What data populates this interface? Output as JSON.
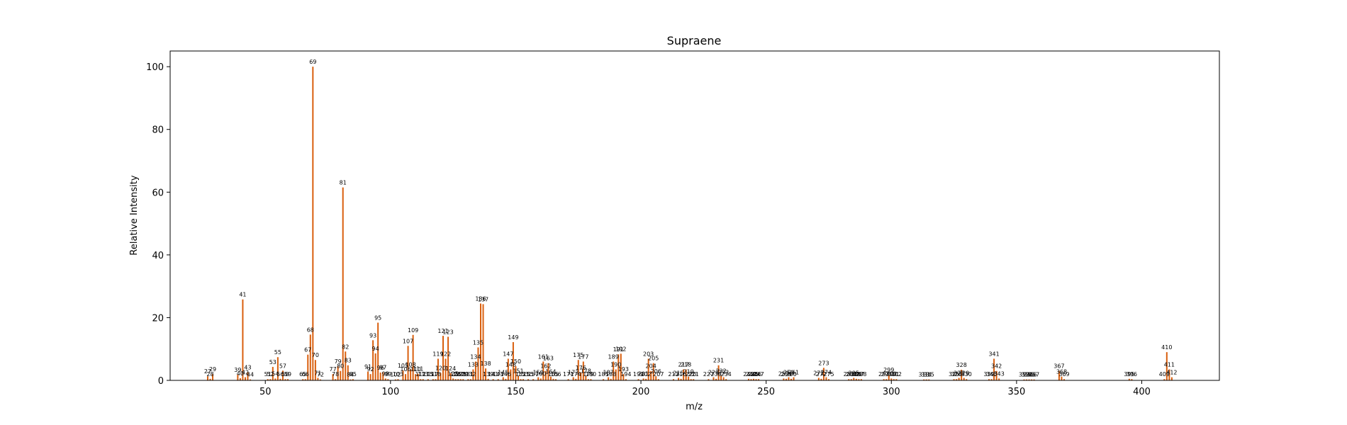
{
  "chart_data": {
    "type": "bar",
    "title": "Supraene",
    "xlabel": "m/z",
    "ylabel": "Relative Intensity",
    "xlim": [
      12,
      431
    ],
    "ylim": [
      0,
      105
    ],
    "xticks": [
      50,
      100,
      150,
      200,
      250,
      300,
      350,
      400
    ],
    "yticks": [
      0,
      20,
      40,
      60,
      80,
      100
    ],
    "bar_color": "#d95f0e",
    "grid": false,
    "peaks": [
      {
        "mz": 27,
        "intensity": 1.3
      },
      {
        "mz": 28,
        "intensity": 0.5
      },
      {
        "mz": 29,
        "intensity": 2.0
      },
      {
        "mz": 39,
        "intensity": 1.8
      },
      {
        "mz": 40,
        "intensity": 0.7
      },
      {
        "mz": 41,
        "intensity": 25.8
      },
      {
        "mz": 42,
        "intensity": 1.0
      },
      {
        "mz": 43,
        "intensity": 2.6
      },
      {
        "mz": 44,
        "intensity": 0.3
      },
      {
        "mz": 51,
        "intensity": 0.4
      },
      {
        "mz": 52,
        "intensity": 0.4
      },
      {
        "mz": 53,
        "intensity": 4.3
      },
      {
        "mz": 54,
        "intensity": 0.6
      },
      {
        "mz": 55,
        "intensity": 7.4
      },
      {
        "mz": 56,
        "intensity": 0.5
      },
      {
        "mz": 57,
        "intensity": 3.1
      },
      {
        "mz": 58,
        "intensity": 0.4
      },
      {
        "mz": 59,
        "intensity": 0.4
      },
      {
        "mz": 65,
        "intensity": 0.4
      },
      {
        "mz": 66,
        "intensity": 0.4
      },
      {
        "mz": 67,
        "intensity": 8.2
      },
      {
        "mz": 68,
        "intensity": 14.6
      },
      {
        "mz": 69,
        "intensity": 100.0
      },
      {
        "mz": 70,
        "intensity": 6.5
      },
      {
        "mz": 71,
        "intensity": 0.8
      },
      {
        "mz": 72,
        "intensity": 0.3
      },
      {
        "mz": 77,
        "intensity": 2.0
      },
      {
        "mz": 78,
        "intensity": 0.4
      },
      {
        "mz": 79,
        "intensity": 4.5
      },
      {
        "mz": 80,
        "intensity": 3.0
      },
      {
        "mz": 81,
        "intensity": 61.5
      },
      {
        "mz": 82,
        "intensity": 9.2
      },
      {
        "mz": 83,
        "intensity": 4.8
      },
      {
        "mz": 84,
        "intensity": 0.3
      },
      {
        "mz": 85,
        "intensity": 0.4
      },
      {
        "mz": 91,
        "intensity": 2.8
      },
      {
        "mz": 92,
        "intensity": 2.0
      },
      {
        "mz": 93,
        "intensity": 12.8
      },
      {
        "mz": 94,
        "intensity": 8.6
      },
      {
        "mz": 95,
        "intensity": 18.4
      },
      {
        "mz": 96,
        "intensity": 2.5
      },
      {
        "mz": 97,
        "intensity": 2.6
      },
      {
        "mz": 98,
        "intensity": 0.6
      },
      {
        "mz": 99,
        "intensity": 0.4
      },
      {
        "mz": 102,
        "intensity": 0.3
      },
      {
        "mz": 103,
        "intensity": 0.4
      },
      {
        "mz": 105,
        "intensity": 3.2
      },
      {
        "mz": 106,
        "intensity": 2.0
      },
      {
        "mz": 107,
        "intensity": 11.0
      },
      {
        "mz": 108,
        "intensity": 3.5
      },
      {
        "mz": 109,
        "intensity": 14.5
      },
      {
        "mz": 110,
        "intensity": 2.0
      },
      {
        "mz": 111,
        "intensity": 2.1
      },
      {
        "mz": 112,
        "intensity": 0.4
      },
      {
        "mz": 113,
        "intensity": 0.4
      },
      {
        "mz": 115,
        "intensity": 0.4
      },
      {
        "mz": 117,
        "intensity": 0.4
      },
      {
        "mz": 118,
        "intensity": 0.4
      },
      {
        "mz": 119,
        "intensity": 6.9
      },
      {
        "mz": 120,
        "intensity": 2.4
      },
      {
        "mz": 121,
        "intensity": 14.2
      },
      {
        "mz": 122,
        "intensity": 6.9
      },
      {
        "mz": 123,
        "intensity": 13.9
      },
      {
        "mz": 124,
        "intensity": 2.3
      },
      {
        "mz": 125,
        "intensity": 0.6
      },
      {
        "mz": 126,
        "intensity": 0.4
      },
      {
        "mz": 127,
        "intensity": 0.4
      },
      {
        "mz": 128,
        "intensity": 0.4
      },
      {
        "mz": 129,
        "intensity": 0.4
      },
      {
        "mz": 131,
        "intensity": 0.4
      },
      {
        "mz": 132,
        "intensity": 0.4
      },
      {
        "mz": 133,
        "intensity": 3.5
      },
      {
        "mz": 134,
        "intensity": 6.0
      },
      {
        "mz": 135,
        "intensity": 10.5
      },
      {
        "mz": 136,
        "intensity": 24.5
      },
      {
        "mz": 137,
        "intensity": 24.3
      },
      {
        "mz": 138,
        "intensity": 3.8
      },
      {
        "mz": 139,
        "intensity": 0.5
      },
      {
        "mz": 141,
        "intensity": 0.4
      },
      {
        "mz": 143,
        "intensity": 0.4
      },
      {
        "mz": 145,
        "intensity": 1.0
      },
      {
        "mz": 146,
        "intensity": 0.5
      },
      {
        "mz": 147,
        "intensity": 6.9
      },
      {
        "mz": 148,
        "intensity": 3.5
      },
      {
        "mz": 149,
        "intensity": 12.2
      },
      {
        "mz": 150,
        "intensity": 4.5
      },
      {
        "mz": 151,
        "intensity": 1.5
      },
      {
        "mz": 152,
        "intensity": 0.4
      },
      {
        "mz": 153,
        "intensity": 0.4
      },
      {
        "mz": 155,
        "intensity": 0.4
      },
      {
        "mz": 157,
        "intensity": 0.4
      },
      {
        "mz": 159,
        "intensity": 1.0
      },
      {
        "mz": 160,
        "intensity": 0.6
      },
      {
        "mz": 161,
        "intensity": 6.0
      },
      {
        "mz": 162,
        "intensity": 3.0
      },
      {
        "mz": 163,
        "intensity": 5.5
      },
      {
        "mz": 164,
        "intensity": 1.2
      },
      {
        "mz": 165,
        "intensity": 0.5
      },
      {
        "mz": 166,
        "intensity": 0.4
      },
      {
        "mz": 171,
        "intensity": 0.4
      },
      {
        "mz": 173,
        "intensity": 1.0
      },
      {
        "mz": 174,
        "intensity": 0.5
      },
      {
        "mz": 175,
        "intensity": 6.5
      },
      {
        "mz": 176,
        "intensity": 2.5
      },
      {
        "mz": 177,
        "intensity": 6.0
      },
      {
        "mz": 178,
        "intensity": 1.5
      },
      {
        "mz": 179,
        "intensity": 0.4
      },
      {
        "mz": 180,
        "intensity": 0.4
      },
      {
        "mz": 185,
        "intensity": 0.4
      },
      {
        "mz": 187,
        "intensity": 1.0
      },
      {
        "mz": 188,
        "intensity": 0.5
      },
      {
        "mz": 189,
        "intensity": 6.0
      },
      {
        "mz": 190,
        "intensity": 3.5
      },
      {
        "mz": 191,
        "intensity": 8.3
      },
      {
        "mz": 192,
        "intensity": 8.5
      },
      {
        "mz": 193,
        "intensity": 2.0
      },
      {
        "mz": 194,
        "intensity": 0.4
      },
      {
        "mz": 199,
        "intensity": 0.4
      },
      {
        "mz": 201,
        "intensity": 0.6
      },
      {
        "mz": 202,
        "intensity": 0.5
      },
      {
        "mz": 203,
        "intensity": 6.9
      },
      {
        "mz": 204,
        "intensity": 3.0
      },
      {
        "mz": 205,
        "intensity": 5.5
      },
      {
        "mz": 206,
        "intensity": 1.3
      },
      {
        "mz": 207,
        "intensity": 0.4
      },
      {
        "mz": 213,
        "intensity": 0.4
      },
      {
        "mz": 215,
        "intensity": 0.8
      },
      {
        "mz": 216,
        "intensity": 0.5
      },
      {
        "mz": 217,
        "intensity": 3.5
      },
      {
        "mz": 218,
        "intensity": 3.5
      },
      {
        "mz": 219,
        "intensity": 1.2
      },
      {
        "mz": 220,
        "intensity": 0.4
      },
      {
        "mz": 221,
        "intensity": 0.4
      },
      {
        "mz": 227,
        "intensity": 0.4
      },
      {
        "mz": 229,
        "intensity": 1.0
      },
      {
        "mz": 230,
        "intensity": 0.5
      },
      {
        "mz": 231,
        "intensity": 4.8
      },
      {
        "mz": 232,
        "intensity": 1.5
      },
      {
        "mz": 233,
        "intensity": 1.0
      },
      {
        "mz": 234,
        "intensity": 0.4
      },
      {
        "mz": 243,
        "intensity": 0.5
      },
      {
        "mz": 244,
        "intensity": 0.4
      },
      {
        "mz": 245,
        "intensity": 0.5
      },
      {
        "mz": 246,
        "intensity": 0.4
      },
      {
        "mz": 247,
        "intensity": 0.4
      },
      {
        "mz": 257,
        "intensity": 0.6
      },
      {
        "mz": 258,
        "intensity": 0.5
      },
      {
        "mz": 259,
        "intensity": 1.0
      },
      {
        "mz": 260,
        "intensity": 0.5
      },
      {
        "mz": 261,
        "intensity": 1.0
      },
      {
        "mz": 271,
        "intensity": 0.8
      },
      {
        "mz": 272,
        "intensity": 0.5
      },
      {
        "mz": 273,
        "intensity": 4.0
      },
      {
        "mz": 274,
        "intensity": 1.0
      },
      {
        "mz": 275,
        "intensity": 0.4
      },
      {
        "mz": 283,
        "intensity": 0.4
      },
      {
        "mz": 284,
        "intensity": 0.4
      },
      {
        "mz": 285,
        "intensity": 0.8
      },
      {
        "mz": 286,
        "intensity": 0.5
      },
      {
        "mz": 287,
        "intensity": 0.4
      },
      {
        "mz": 288,
        "intensity": 0.4
      },
      {
        "mz": 297,
        "intensity": 0.4
      },
      {
        "mz": 298,
        "intensity": 0.4
      },
      {
        "mz": 299,
        "intensity": 1.8
      },
      {
        "mz": 300,
        "intensity": 0.6
      },
      {
        "mz": 301,
        "intensity": 0.4
      },
      {
        "mz": 302,
        "intensity": 0.4
      },
      {
        "mz": 313,
        "intensity": 0.3
      },
      {
        "mz": 314,
        "intensity": 0.3
      },
      {
        "mz": 315,
        "intensity": 0.3
      },
      {
        "mz": 325,
        "intensity": 0.4
      },
      {
        "mz": 326,
        "intensity": 0.4
      },
      {
        "mz": 327,
        "intensity": 0.8
      },
      {
        "mz": 328,
        "intensity": 3.4
      },
      {
        "mz": 329,
        "intensity": 0.8
      },
      {
        "mz": 330,
        "intensity": 0.4
      },
      {
        "mz": 339,
        "intensity": 0.4
      },
      {
        "mz": 340,
        "intensity": 0.4
      },
      {
        "mz": 341,
        "intensity": 6.9
      },
      {
        "mz": 342,
        "intensity": 3.0
      },
      {
        "mz": 343,
        "intensity": 0.6
      },
      {
        "mz": 353,
        "intensity": 0.3
      },
      {
        "mz": 354,
        "intensity": 0.3
      },
      {
        "mz": 355,
        "intensity": 0.3
      },
      {
        "mz": 356,
        "intensity": 0.3
      },
      {
        "mz": 357,
        "intensity": 0.3
      },
      {
        "mz": 367,
        "intensity": 3.0
      },
      {
        "mz": 368,
        "intensity": 1.2
      },
      {
        "mz": 369,
        "intensity": 0.4
      },
      {
        "mz": 395,
        "intensity": 0.5
      },
      {
        "mz": 396,
        "intensity": 0.4
      },
      {
        "mz": 409,
        "intensity": 0.4
      },
      {
        "mz": 410,
        "intensity": 9.0
      },
      {
        "mz": 411,
        "intensity": 3.5
      },
      {
        "mz": 412,
        "intensity": 1.0
      }
    ]
  }
}
